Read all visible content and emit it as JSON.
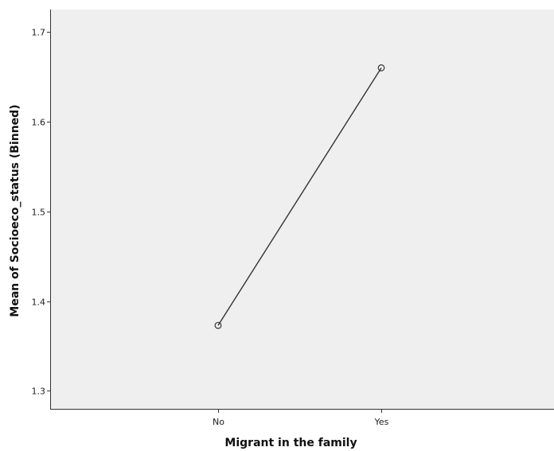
{
  "chart_data": {
    "type": "line",
    "title": "",
    "xlabel": "Migrant in the family",
    "ylabel": "Mean of Socioeco_status (Binned)",
    "categories": [
      "No",
      "Yes"
    ],
    "series": [
      {
        "values": [
          1.373,
          1.66
        ]
      }
    ],
    "ylim": [
      1.28,
      1.725
    ],
    "yticks": [
      "1.3",
      "1.4",
      "1.5",
      "1.6",
      "1.7"
    ],
    "grid": false,
    "marker": "open-circle",
    "colors": {
      "line": "#333333",
      "plot_background": "#efefef",
      "axis": "#333333"
    }
  }
}
